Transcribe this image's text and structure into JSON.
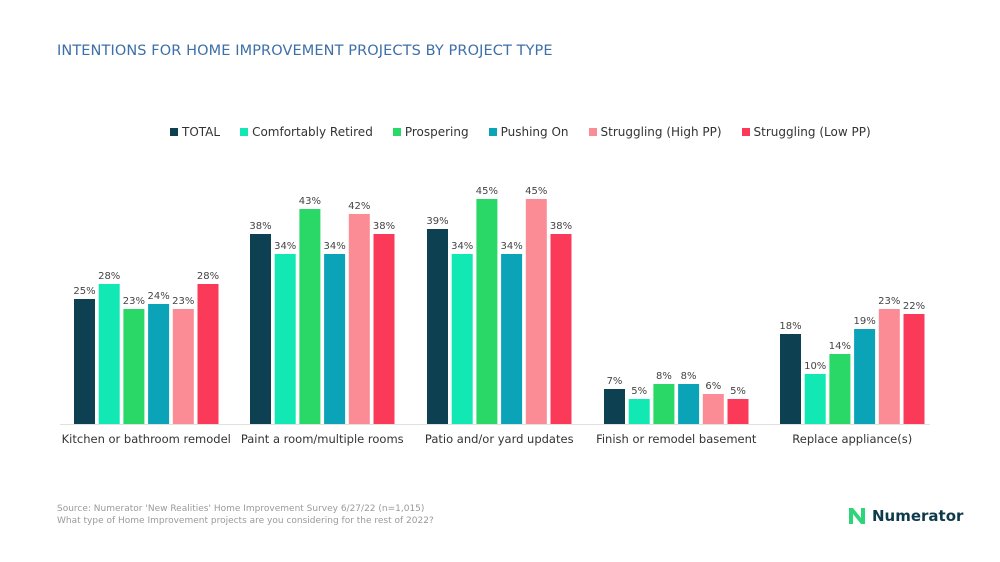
{
  "chart_data": {
    "type": "bar",
    "title": "INTENTIONS FOR HOME IMPROVEMENT PROJECTS BY PROJECT TYPE",
    "xlabel": "",
    "ylabel": "",
    "ylim": [
      0,
      50
    ],
    "legend_position": "top",
    "categories": [
      "Kitchen or bathroom remodel",
      "Paint a room/multiple rooms",
      "Patio and/or yard updates",
      "Finish or remodel basement",
      "Replace appliance(s)"
    ],
    "series": [
      {
        "name": "TOTAL",
        "color": "#0d4050",
        "values": [
          25,
          38,
          39,
          7,
          18
        ]
      },
      {
        "name": "Comfortably Retired",
        "color": "#12e8b4",
        "values": [
          28,
          34,
          34,
          5,
          10
        ]
      },
      {
        "name": "Prospering",
        "color": "#29d866",
        "values": [
          23,
          43,
          45,
          8,
          14
        ]
      },
      {
        "name": "Pushing On",
        "color": "#0ba3b8",
        "values": [
          24,
          34,
          34,
          8,
          19
        ]
      },
      {
        "name": "Struggling (High PP)",
        "color": "#fb8c96",
        "values": [
          23,
          42,
          45,
          6,
          23
        ]
      },
      {
        "name": "Struggling (Low PP)",
        "color": "#fb3a5a",
        "values": [
          28,
          38,
          38,
          5,
          22
        ]
      }
    ],
    "value_suffix": "%"
  },
  "source": {
    "line1": "Source: Numerator 'New Realities' Home Improvement Survey 6/27/22 (n=1,015)",
    "line2": "What type of Home Improvement projects are you considering for the rest of 2022?"
  },
  "logo": {
    "text": "Numerator",
    "color": "#2ed47a"
  }
}
